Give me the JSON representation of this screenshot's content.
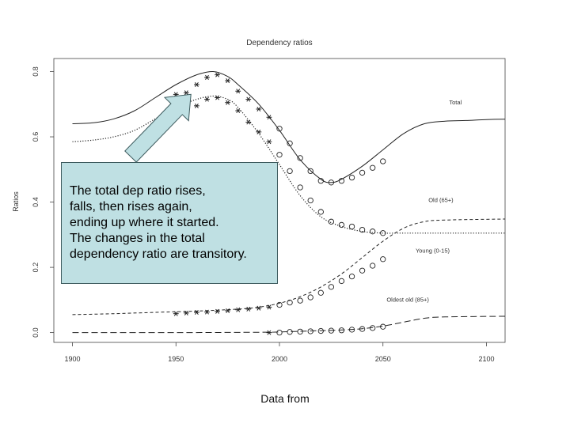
{
  "chart_data": {
    "type": "line",
    "title": "Dependency ratios",
    "ylabel": "Ratios",
    "xlabel": "",
    "xlim": [
      1891,
      2109
    ],
    "ylim": [
      -0.03,
      0.84
    ],
    "x_ticks": [
      1900,
      1950,
      2000,
      2050,
      2100
    ],
    "y_ticks": [
      0.0,
      0.2,
      0.4,
      0.6,
      0.8
    ],
    "x_tick_labels": [
      "1900",
      "1950",
      "2000",
      "2050",
      "2100"
    ],
    "y_tick_labels": [
      "0.0",
      "0.2",
      "0.4",
      "0.6",
      "0.8"
    ],
    "grid": false,
    "series": [
      {
        "name": "Total",
        "style": "solid",
        "points": [
          [
            1900,
            0.64
          ],
          [
            1910,
            0.643
          ],
          [
            1920,
            0.655
          ],
          [
            1930,
            0.68
          ],
          [
            1940,
            0.72
          ],
          [
            1950,
            0.76
          ],
          [
            1960,
            0.79
          ],
          [
            1968,
            0.8
          ],
          [
            1975,
            0.785
          ],
          [
            1980,
            0.76
          ],
          [
            1990,
            0.7
          ],
          [
            2000,
            0.62
          ],
          [
            2010,
            0.53
          ],
          [
            2020,
            0.47
          ],
          [
            2025,
            0.46
          ],
          [
            2030,
            0.47
          ],
          [
            2040,
            0.51
          ],
          [
            2050,
            0.56
          ],
          [
            2060,
            0.61
          ],
          [
            2070,
            0.64
          ],
          [
            2080,
            0.648
          ],
          [
            2090,
            0.65
          ],
          [
            2100,
            0.653
          ],
          [
            2109,
            0.654
          ]
        ],
        "observed": [
          [
            1950,
            0.73
          ],
          [
            1955,
            0.735
          ],
          [
            1960,
            0.76
          ],
          [
            1965,
            0.782
          ],
          [
            1970,
            0.79
          ],
          [
            1975,
            0.772
          ],
          [
            1980,
            0.74
          ],
          [
            1985,
            0.715
          ],
          [
            1990,
            0.685
          ],
          [
            1995,
            0.66
          ],
          [
            2000,
            0.625
          ],
          [
            2005,
            0.58
          ],
          [
            2010,
            0.535
          ],
          [
            2015,
            0.495
          ],
          [
            2020,
            0.465
          ],
          [
            2025,
            0.46
          ],
          [
            2030,
            0.465
          ],
          [
            2035,
            0.475
          ],
          [
            2040,
            0.49
          ],
          [
            2045,
            0.505
          ],
          [
            2050,
            0.525
          ]
        ],
        "observed_markers": "asterisk-to-1997-then-circle"
      },
      {
        "name": "Old (65+)",
        "style": "dotted",
        "points": [
          [
            1900,
            0.585
          ],
          [
            1910,
            0.59
          ],
          [
            1920,
            0.6
          ],
          [
            1930,
            0.62
          ],
          [
            1940,
            0.655
          ],
          [
            1950,
            0.69
          ],
          [
            1960,
            0.715
          ],
          [
            1968,
            0.725
          ],
          [
            1975,
            0.715
          ],
          [
            1980,
            0.69
          ],
          [
            1990,
            0.61
          ],
          [
            2000,
            0.515
          ],
          [
            2010,
            0.42
          ],
          [
            2020,
            0.355
          ],
          [
            2030,
            0.325
          ],
          [
            2040,
            0.31
          ],
          [
            2050,
            0.305
          ],
          [
            2060,
            0.305
          ],
          [
            2080,
            0.305
          ],
          [
            2109,
            0.305
          ]
        ],
        "observed": [
          [
            1950,
            0.67
          ],
          [
            1955,
            0.675
          ],
          [
            1960,
            0.695
          ],
          [
            1965,
            0.715
          ],
          [
            1970,
            0.72
          ],
          [
            1975,
            0.705
          ],
          [
            1980,
            0.68
          ],
          [
            1985,
            0.645
          ],
          [
            1990,
            0.615
          ],
          [
            1995,
            0.585
          ],
          [
            2000,
            0.545
          ],
          [
            2005,
            0.495
          ],
          [
            2010,
            0.445
          ],
          [
            2015,
            0.405
          ],
          [
            2020,
            0.37
          ],
          [
            2025,
            0.34
          ],
          [
            2030,
            0.33
          ],
          [
            2035,
            0.325
          ],
          [
            2040,
            0.315
          ],
          [
            2045,
            0.31
          ],
          [
            2050,
            0.305
          ]
        ],
        "observed_markers": "asterisk-to-1997-then-circle"
      },
      {
        "name": "Young (0-15)",
        "style": "dashed",
        "points": [
          [
            1900,
            0.055
          ],
          [
            1920,
            0.058
          ],
          [
            1940,
            0.062
          ],
          [
            1960,
            0.066
          ],
          [
            1980,
            0.072
          ],
          [
            1990,
            0.078
          ],
          [
            2000,
            0.09
          ],
          [
            2010,
            0.11
          ],
          [
            2020,
            0.14
          ],
          [
            2030,
            0.18
          ],
          [
            2040,
            0.23
          ],
          [
            2050,
            0.28
          ],
          [
            2060,
            0.32
          ],
          [
            2070,
            0.34
          ],
          [
            2080,
            0.345
          ],
          [
            2109,
            0.348
          ]
        ],
        "observed": [
          [
            1950,
            0.058
          ],
          [
            1955,
            0.06
          ],
          [
            1960,
            0.062
          ],
          [
            1965,
            0.063
          ],
          [
            1970,
            0.065
          ],
          [
            1975,
            0.067
          ],
          [
            1980,
            0.07
          ],
          [
            1985,
            0.072
          ],
          [
            1990,
            0.075
          ],
          [
            1995,
            0.078
          ],
          [
            2000,
            0.085
          ],
          [
            2005,
            0.092
          ],
          [
            2010,
            0.098
          ],
          [
            2015,
            0.108
          ],
          [
            2020,
            0.122
          ],
          [
            2025,
            0.14
          ],
          [
            2030,
            0.158
          ],
          [
            2035,
            0.172
          ],
          [
            2040,
            0.19
          ],
          [
            2045,
            0.205
          ],
          [
            2050,
            0.225
          ]
        ],
        "observed_markers": "asterisk-to-1997-then-circle"
      },
      {
        "name": "Oldest old (85+)",
        "style": "longdash",
        "points": [
          [
            1900,
            0.0
          ],
          [
            1950,
            0.0
          ],
          [
            1990,
            0.001
          ],
          [
            2000,
            0.002
          ],
          [
            2010,
            0.004
          ],
          [
            2020,
            0.006
          ],
          [
            2030,
            0.008
          ],
          [
            2040,
            0.012
          ],
          [
            2050,
            0.02
          ],
          [
            2060,
            0.032
          ],
          [
            2070,
            0.044
          ],
          [
            2080,
            0.048
          ],
          [
            2109,
            0.05
          ]
        ],
        "observed": [
          [
            1995,
            0.0
          ],
          [
            2000,
            0.0
          ],
          [
            2005,
            0.002
          ],
          [
            2010,
            0.003
          ],
          [
            2015,
            0.004
          ],
          [
            2020,
            0.005
          ],
          [
            2025,
            0.006
          ],
          [
            2030,
            0.007
          ],
          [
            2035,
            0.009
          ],
          [
            2040,
            0.011
          ],
          [
            2045,
            0.014
          ],
          [
            2050,
            0.018
          ]
        ],
        "observed_markers": "asterisk-to-1997-then-circle"
      }
    ],
    "series_labels": [
      {
        "text": "Total",
        "x": 2085,
        "y": 0.7
      },
      {
        "text": "Old (65+)",
        "x": 2078,
        "y": 0.4
      },
      {
        "text": "Young (0-15)",
        "x": 2074,
        "y": 0.245
      },
      {
        "text": "Oldest old (85+)",
        "x": 2062,
        "y": 0.095
      }
    ]
  },
  "callout": {
    "lines": [
      "The total dep ratio rises,",
      "falls, then rises again,",
      "ending up where it started.",
      "The changes in the total",
      "dependency ratio are transitory."
    ],
    "arrow_color": "#bfe0e3",
    "arrow_points_to": [
      1958,
      0.74
    ]
  },
  "footer": {
    "text": "Data from"
  }
}
